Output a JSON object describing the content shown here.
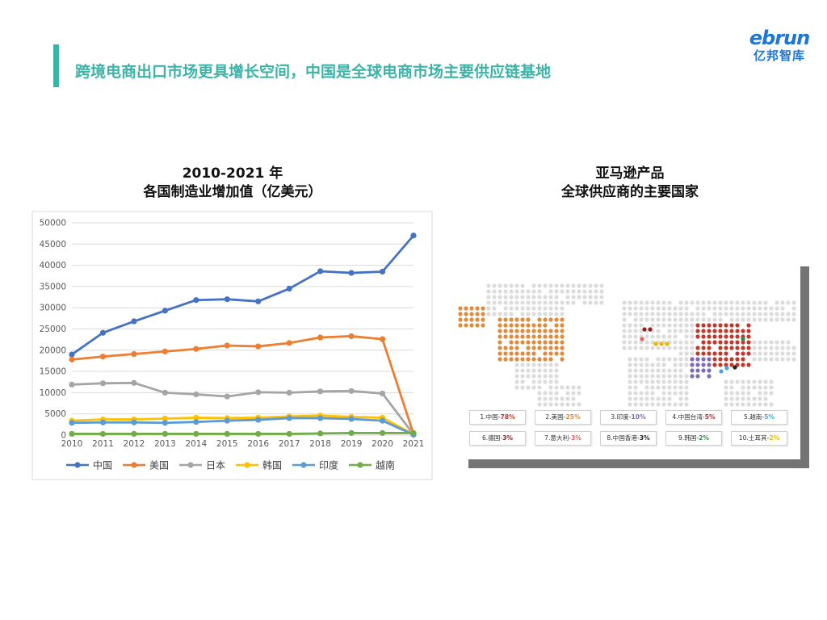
{
  "header": {
    "title": "跨境电商出口市场更具增长空间，中国是全球电商市场主要供应链基地",
    "accent_color": "#3bb3a6",
    "logo_word": "ebrun",
    "logo_sub": "亿邦智库"
  },
  "line_chart": {
    "title_line1": "2010-2021 年",
    "title_line2": "各国制造业增加值（亿美元）"
  },
  "map": {
    "title_line1": "亚马逊产品",
    "title_line2": "全球供应商的主要国家",
    "suppliers": [
      [
        {
          "label": "1.中国-",
          "pct": "78%",
          "color": "#c0392b"
        },
        {
          "label": "2.美国-",
          "pct": "25%",
          "color": "#e08a3c"
        },
        {
          "label": "3.印度-",
          "pct": "10%",
          "color": "#7e6bb5"
        },
        {
          "label": "4.中国台湾-",
          "pct": "5%",
          "color": "#b03030"
        },
        {
          "label": "5.越南-",
          "pct": "5%",
          "color": "#4aa8d8"
        }
      ],
      [
        {
          "label": "6.德国-",
          "pct": "3%",
          "color": "#8b2323"
        },
        {
          "label": "7.意大利-",
          "pct": "3%",
          "color": "#e0655a"
        },
        {
          "label": "8.中国香港-",
          "pct": "3%",
          "color": "#222222"
        },
        {
          "label": "9.韩国-",
          "pct": "2%",
          "color": "#2e8b57"
        },
        {
          "label": "10.土耳其-",
          "pct": "2%",
          "color": "#e6b800"
        }
      ]
    ]
  },
  "chart_data": {
    "type": "line",
    "title": "2010-2021 年 各国制造业增加值（亿美元）",
    "categories": [
      "2010",
      "2011",
      "2012",
      "2013",
      "2014",
      "2015",
      "2016",
      "2017",
      "2018",
      "2019",
      "2020",
      "2021"
    ],
    "ylim": [
      0,
      50000
    ],
    "yticks": [
      "0",
      "5000",
      "10000",
      "15000",
      "20000",
      "25000",
      "30000",
      "35000",
      "40000",
      "45000",
      "50000"
    ],
    "grid": true,
    "legend_position": "bottom",
    "series": [
      {
        "name": "中国",
        "color": "#4472c4",
        "values": [
          19000,
          24100,
          26800,
          29300,
          31800,
          32000,
          31500,
          34500,
          38600,
          38200,
          38500,
          47000
        ]
      },
      {
        "name": "美国",
        "color": "#ed7d31",
        "values": [
          17800,
          18500,
          19100,
          19700,
          20300,
          21100,
          20900,
          21700,
          23000,
          23300,
          22600,
          300
        ]
      },
      {
        "name": "日本",
        "color": "#a5a5a5",
        "values": [
          11900,
          12200,
          12300,
          10000,
          9600,
          9100,
          10100,
          10000,
          10300,
          10400,
          9800,
          200
        ]
      },
      {
        "name": "韩国",
        "color": "#ffc000",
        "values": [
          3400,
          3700,
          3700,
          3900,
          4100,
          4000,
          4100,
          4400,
          4600,
          4300,
          4100,
          200
        ]
      },
      {
        "name": "印度",
        "color": "#5b9bd5",
        "values": [
          2900,
          3000,
          3000,
          2900,
          3100,
          3400,
          3600,
          4000,
          4000,
          3800,
          3400,
          100
        ]
      },
      {
        "name": "越南",
        "color": "#70ad47",
        "values": [
          300,
          300,
          300,
          300,
          300,
          300,
          300,
          300,
          400,
          500,
          500,
          500
        ]
      }
    ]
  }
}
